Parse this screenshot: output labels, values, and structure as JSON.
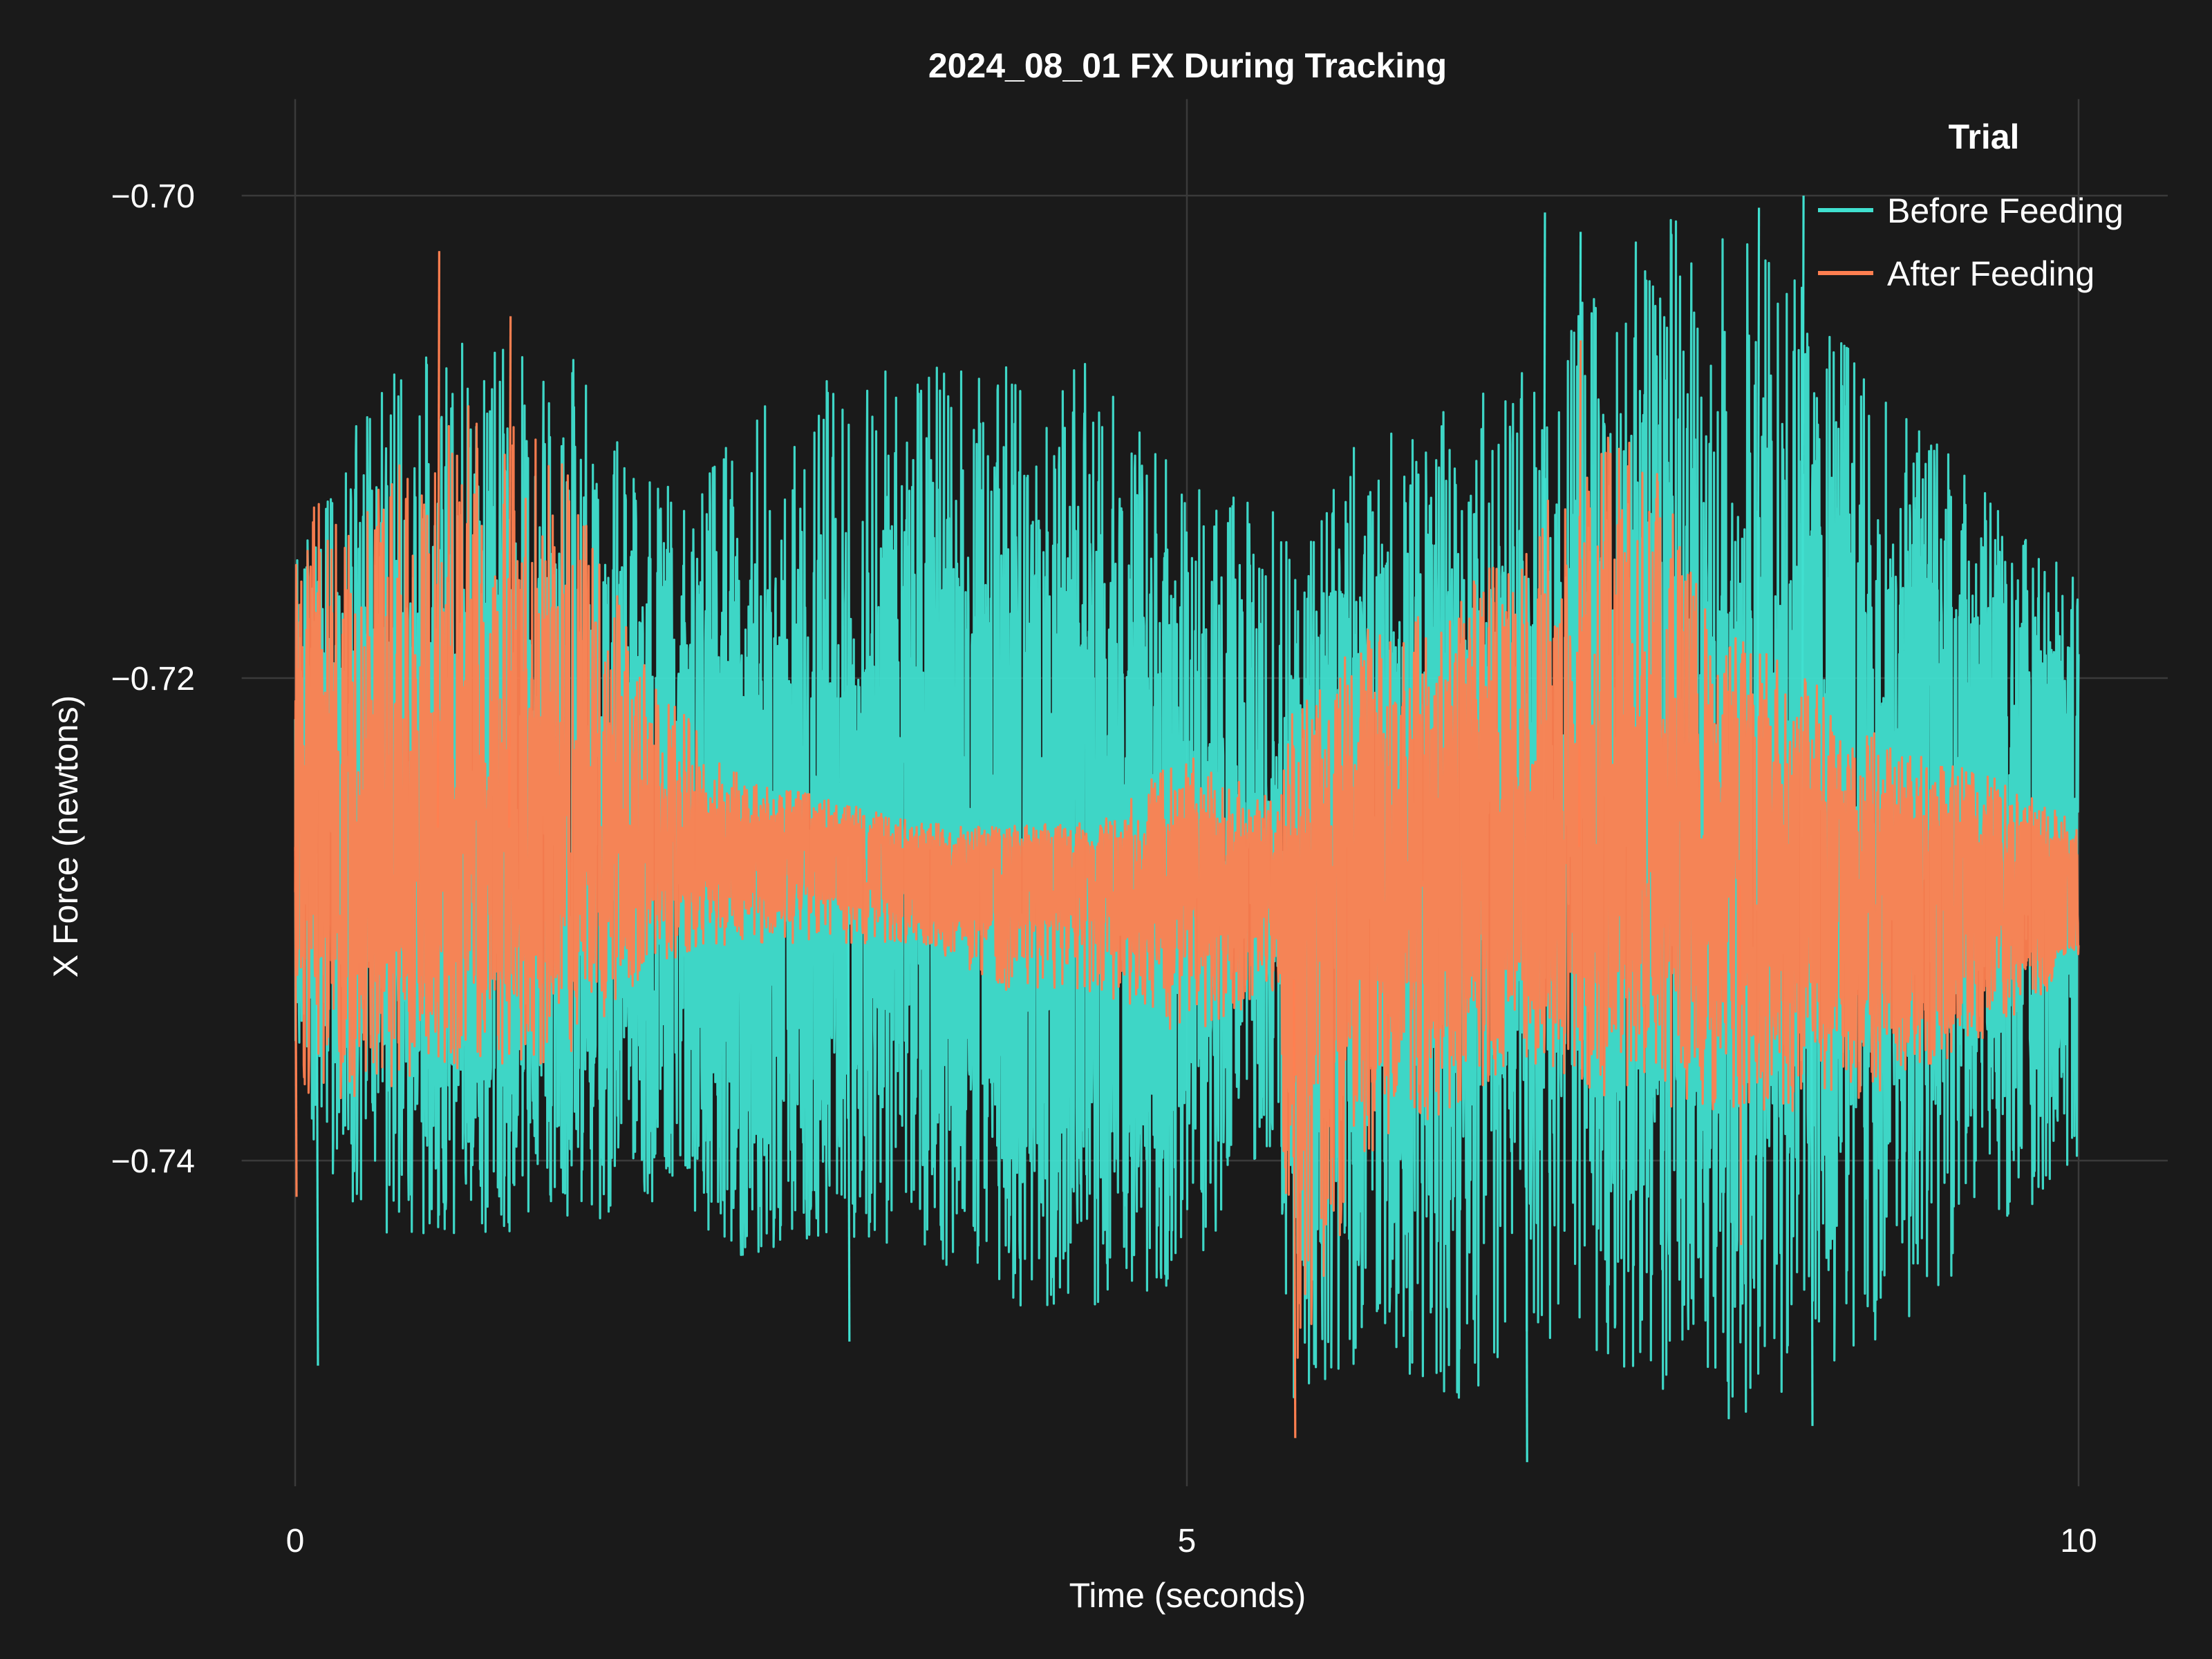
{
  "chart_data": {
    "type": "line",
    "title": "2024_08_01 FX During Tracking",
    "xlabel": "Time (seconds)",
    "ylabel": "X Force (newtons)",
    "xlim": [
      -0.3,
      10.5
    ],
    "ylim": [
      -0.7535,
      -0.696
    ],
    "x_ticks": [
      0,
      5,
      10
    ],
    "x_tick_labels": [
      "0",
      "5",
      "10"
    ],
    "y_ticks": [
      -0.7,
      -0.72,
      -0.74
    ],
    "y_tick_labels": [
      "−0.70",
      "−0.72",
      "−0.74"
    ],
    "grid": true,
    "legend": {
      "title": "Trial",
      "position": "top-right"
    },
    "series": [
      {
        "name": "Before Feeding",
        "color": "#40e0d0",
        "x": [
          0.0,
          0.5,
          1.0,
          1.5,
          2.0,
          2.5,
          3.0,
          3.5,
          4.0,
          4.5,
          5.0,
          5.5,
          5.6,
          6.0,
          6.5,
          7.0,
          7.5,
          8.0,
          8.5,
          9.0,
          9.5,
          10.0
        ],
        "upper": [
          -0.715,
          -0.707,
          -0.706,
          -0.706,
          -0.712,
          -0.709,
          -0.707,
          -0.707,
          -0.706,
          -0.707,
          -0.712,
          -0.712,
          -0.716,
          -0.709,
          -0.708,
          -0.707,
          -0.701,
          -0.701,
          -0.704,
          -0.709,
          -0.712,
          -0.716
        ],
        "lower": [
          -0.738,
          -0.744,
          -0.743,
          -0.743,
          -0.742,
          -0.744,
          -0.743,
          -0.744,
          -0.746,
          -0.746,
          -0.745,
          -0.739,
          -0.751,
          -0.748,
          -0.75,
          -0.748,
          -0.749,
          -0.751,
          -0.749,
          -0.747,
          -0.744,
          -0.74
        ],
        "core_upper": [
          -0.722,
          -0.718,
          -0.718,
          -0.719,
          -0.72,
          -0.72,
          -0.721,
          -0.719,
          -0.718,
          -0.719,
          -0.722,
          -0.725,
          -0.722,
          -0.719,
          -0.719,
          -0.718,
          -0.717,
          -0.718,
          -0.718,
          -0.717,
          -0.718,
          -0.722
        ],
        "core_lower": [
          -0.733,
          -0.735,
          -0.736,
          -0.736,
          -0.735,
          -0.735,
          -0.734,
          -0.735,
          -0.737,
          -0.738,
          -0.736,
          -0.731,
          -0.738,
          -0.736,
          -0.736,
          -0.735,
          -0.736,
          -0.737,
          -0.735,
          -0.735,
          -0.734,
          -0.732
        ],
        "min_points": [
          [
            0.12,
            -0.7485
          ],
          [
            3.1,
            -0.7475
          ],
          [
            6.9,
            -0.7525
          ],
          [
            8.5,
            -0.751
          ]
        ],
        "max_points": [
          [
            7.0,
            -0.7007
          ],
          [
            8.2,
            -0.7005
          ],
          [
            8.45,
            -0.7
          ],
          [
            7.2,
            -0.7015
          ]
        ]
      },
      {
        "name": "After Feeding",
        "color": "#ff7f50",
        "x": [
          0.0,
          0.5,
          1.0,
          1.5,
          2.0,
          2.5,
          3.0,
          3.5,
          4.0,
          4.5,
          5.0,
          5.5,
          5.6,
          6.0,
          6.5,
          7.0,
          7.5,
          8.0,
          8.5,
          9.0,
          9.5,
          10.0
        ],
        "upper": [
          -0.713,
          -0.711,
          -0.708,
          -0.711,
          -0.72,
          -0.724,
          -0.725,
          -0.726,
          -0.726,
          -0.726,
          -0.723,
          -0.725,
          -0.721,
          -0.718,
          -0.717,
          -0.712,
          -0.709,
          -0.718,
          -0.72,
          -0.723,
          -0.724,
          -0.726
        ],
        "lower": [
          -0.738,
          -0.737,
          -0.736,
          -0.736,
          -0.732,
          -0.731,
          -0.731,
          -0.731,
          -0.733,
          -0.733,
          -0.735,
          -0.733,
          -0.749,
          -0.74,
          -0.738,
          -0.736,
          -0.738,
          -0.738,
          -0.738,
          -0.737,
          -0.735,
          -0.732
        ],
        "core_upper": [
          -0.723,
          -0.722,
          -0.721,
          -0.722,
          -0.725,
          -0.726,
          -0.726,
          -0.727,
          -0.727,
          -0.727,
          -0.726,
          -0.727,
          -0.727,
          -0.724,
          -0.723,
          -0.722,
          -0.722,
          -0.724,
          -0.725,
          -0.726,
          -0.726,
          -0.727
        ],
        "core_lower": [
          -0.731,
          -0.731,
          -0.731,
          -0.731,
          -0.729,
          -0.729,
          -0.729,
          -0.73,
          -0.73,
          -0.73,
          -0.731,
          -0.73,
          -0.738,
          -0.733,
          -0.732,
          -0.732,
          -0.732,
          -0.733,
          -0.733,
          -0.733,
          -0.732,
          -0.731
        ],
        "min_points": [
          [
            5.6,
            -0.7515
          ],
          [
            0.0,
            -0.7415
          ],
          [
            8.1,
            -0.7435
          ]
        ],
        "max_points": [
          [
            0.8,
            -0.7023
          ],
          [
            1.2,
            -0.705
          ],
          [
            7.2,
            -0.706
          ]
        ]
      }
    ]
  }
}
